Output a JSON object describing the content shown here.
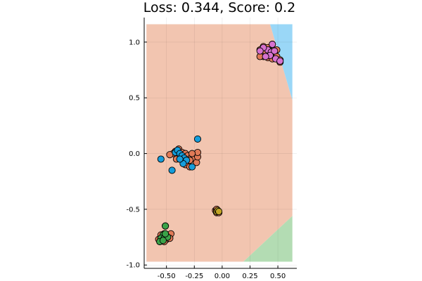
{
  "chart_data": {
    "type": "scatter",
    "title": "Loss: 0.344, Score: 0.2",
    "xlabel": "",
    "ylabel": "",
    "xlim": [
      -0.7,
      0.67
    ],
    "ylim": [
      -1.03,
      1.22
    ],
    "xticks": [
      -0.5,
      -0.25,
      0.0,
      0.25,
      0.5
    ],
    "xtick_labels": [
      "-0.50",
      "-0.25",
      "0.00",
      "0.25",
      "0.50"
    ],
    "yticks": [
      -1.0,
      -0.5,
      0.0,
      0.5,
      1.0
    ],
    "ytick_labels": [
      "-1.0",
      "-0.5",
      "0.0",
      "0.5",
      "1.0"
    ],
    "grid": true,
    "legend": "none",
    "decision_regions": [
      {
        "class": "orange",
        "color": "#f2c5b0",
        "polygon": [
          [
            -0.68,
            1.16
          ],
          [
            0.43,
            1.16
          ],
          [
            0.63,
            0.48
          ],
          [
            0.63,
            -0.56
          ],
          [
            0.19,
            -0.97
          ],
          [
            -0.68,
            -0.97
          ]
        ]
      },
      {
        "class": "blue",
        "color": "#9ad7f7",
        "polygon": [
          [
            0.43,
            1.16
          ],
          [
            0.63,
            1.16
          ],
          [
            0.63,
            0.48
          ]
        ]
      },
      {
        "class": "green",
        "color": "#b3dcb3",
        "polygon": [
          [
            0.63,
            -0.56
          ],
          [
            0.63,
            -0.97
          ],
          [
            0.19,
            -0.97
          ]
        ]
      }
    ],
    "series": [
      {
        "color": "#e07a57",
        "outline": "#e26f46",
        "points": [
          [
            0.37,
            0.96
          ],
          [
            0.41,
            0.95
          ],
          [
            0.45,
            0.98
          ],
          [
            0.49,
            0.93
          ],
          [
            0.43,
            0.92
          ],
          [
            0.38,
            0.91
          ],
          [
            0.34,
            0.93
          ],
          [
            0.47,
            0.89
          ],
          [
            0.41,
            0.86
          ],
          [
            0.37,
            0.87
          ],
          [
            0.45,
            0.85
          ],
          [
            0.49,
            0.87
          ],
          [
            0.52,
            0.84
          ],
          [
            0.52,
            0.82
          ],
          [
            0.34,
            0.87
          ],
          [
            0.44,
            0.9
          ],
          [
            -0.42,
            0.02
          ],
          [
            -0.39,
            0.04
          ],
          [
            -0.36,
            0.01
          ],
          [
            -0.33,
            0.0
          ],
          [
            -0.31,
            -0.02
          ],
          [
            -0.28,
            -0.04
          ],
          [
            -0.25,
            -0.05
          ],
          [
            -0.23,
            -0.08
          ],
          [
            -0.22,
            -0.03
          ],
          [
            -0.22,
            0.01
          ],
          [
            -0.27,
            0.0
          ],
          [
            -0.29,
            -0.06
          ],
          [
            -0.35,
            -0.07
          ],
          [
            -0.38,
            -0.02
          ],
          [
            -0.41,
            -0.05
          ],
          [
            -0.44,
            0.0
          ],
          [
            -0.33,
            -0.1
          ],
          [
            -0.29,
            -0.12
          ],
          [
            -0.47,
            -0.01
          ],
          [
            -0.06,
            -0.51
          ],
          [
            -0.05,
            -0.53
          ],
          [
            -0.04,
            -0.52
          ],
          [
            -0.03,
            -0.53
          ],
          [
            -0.05,
            -0.5
          ],
          [
            -0.51,
            -0.65
          ],
          [
            -0.55,
            -0.73
          ],
          [
            -0.52,
            -0.72
          ],
          [
            -0.49,
            -0.73
          ],
          [
            -0.46,
            -0.72
          ],
          [
            -0.57,
            -0.77
          ],
          [
            -0.53,
            -0.76
          ],
          [
            -0.5,
            -0.77
          ],
          [
            -0.47,
            -0.76
          ],
          [
            -0.56,
            -0.79
          ],
          [
            -0.52,
            -0.79
          ]
        ]
      },
      {
        "color": "#d772cf",
        "outline": "#e26f46",
        "points": [
          [
            0.45,
            0.98
          ],
          [
            0.41,
            0.93
          ],
          [
            0.44,
            0.91
          ],
          [
            0.47,
            0.92
          ],
          [
            0.43,
            0.88
          ],
          [
            0.39,
            0.87
          ],
          [
            0.48,
            0.85
          ],
          [
            0.52,
            0.83
          ],
          [
            0.37,
            0.95
          ],
          [
            0.34,
            0.92
          ]
        ]
      },
      {
        "color": "#159ddb",
        "outline": "#e26f46",
        "points": [
          [
            -0.42,
            0.01
          ],
          [
            -0.4,
            0.03
          ],
          [
            -0.38,
            0.0
          ],
          [
            -0.36,
            -0.02
          ],
          [
            -0.34,
            -0.04
          ],
          [
            -0.32,
            -0.06
          ],
          [
            -0.35,
            -0.09
          ],
          [
            -0.27,
            -0.12
          ],
          [
            -0.38,
            -0.05
          ],
          [
            -0.55,
            -0.05
          ],
          [
            -0.45,
            -0.15
          ],
          [
            -0.22,
            0.13
          ]
        ]
      },
      {
        "color": "#c1a526",
        "outline": "#e26f46",
        "points": [
          [
            -0.05,
            -0.52
          ],
          [
            -0.04,
            -0.51
          ],
          [
            -0.03,
            -0.52
          ]
        ]
      },
      {
        "color": "#3ba349",
        "outline": "#e26f46",
        "points": [
          [
            -0.51,
            -0.65
          ],
          [
            -0.53,
            -0.73
          ],
          [
            -0.5,
            -0.74
          ],
          [
            -0.55,
            -0.76
          ],
          [
            -0.52,
            -0.76
          ],
          [
            -0.49,
            -0.75
          ],
          [
            -0.56,
            -0.79
          ],
          [
            -0.53,
            -0.78
          ],
          [
            -0.51,
            -0.72
          ]
        ]
      }
    ]
  }
}
